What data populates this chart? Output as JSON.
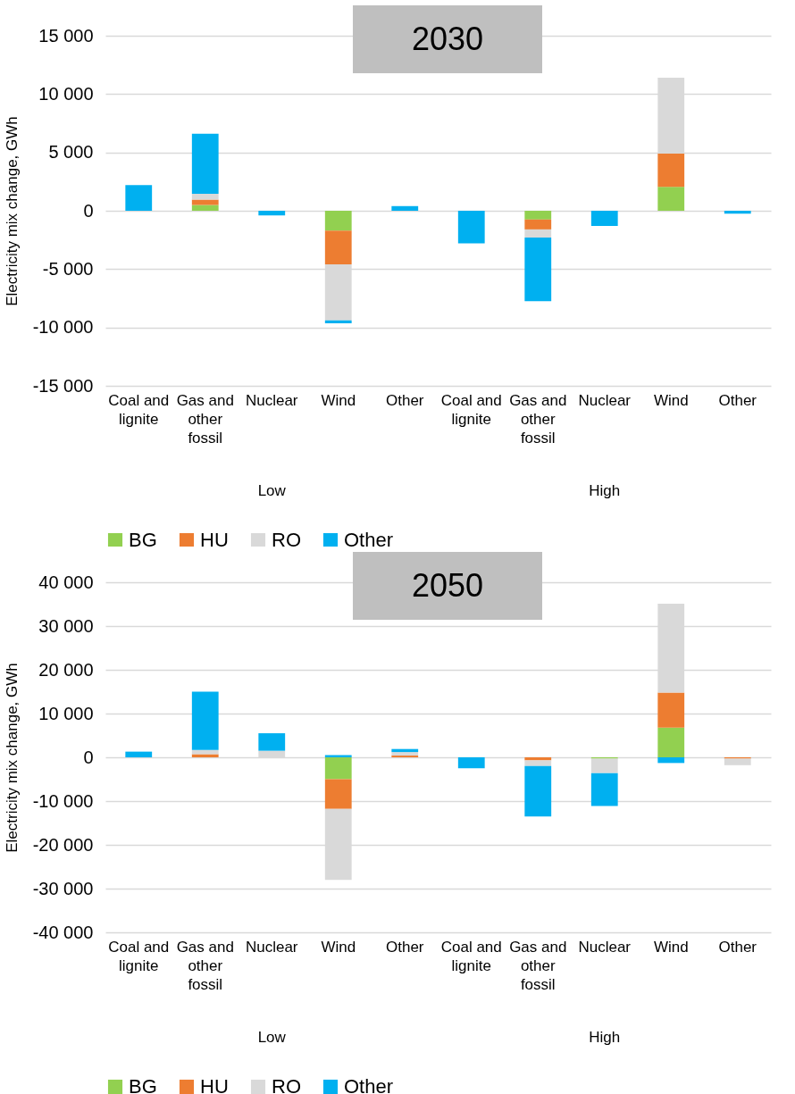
{
  "chart_data": [
    {
      "type": "bar",
      "title": "2030",
      "ylabel": "Electricity mix change, GWh",
      "stacked": true,
      "categories": [
        "Coal and lignite",
        "Gas and other fossil",
        "Nuclear",
        "Wind",
        "Other",
        "Coal and lignite",
        "Gas and other fossil",
        "Nuclear",
        "Wind",
        "Other"
      ],
      "annotations": [
        "Low",
        "High"
      ],
      "series": [
        {
          "name": "BG",
          "color": "#92d050",
          "values": [
            null,
            500,
            null,
            -1700,
            null,
            null,
            -750,
            null,
            2050,
            null
          ]
        },
        {
          "name": "HU",
          "color": "#ed7d31",
          "values": [
            null,
            450,
            null,
            -2900,
            null,
            null,
            -850,
            null,
            2850,
            null
          ]
        },
        {
          "name": "RO",
          "color": "#d9d9d9",
          "values": [
            null,
            500,
            null,
            -4800,
            null,
            null,
            -700,
            null,
            6500,
            null
          ]
        },
        {
          "name": "Other",
          "color": "#00b0f0",
          "values": [
            2200,
            5150,
            -400,
            -250,
            400,
            -2800,
            -5450,
            -1300,
            null,
            -250
          ]
        }
      ],
      "ylim": [
        -15000,
        15000
      ],
      "yticks": [
        {
          "value": -15000,
          "label": "-15 000"
        },
        {
          "value": -10000,
          "label": "-10 000"
        },
        {
          "value": -5000,
          "label": "-5 000"
        },
        0,
        {
          "value": 5000,
          "label": "5 000"
        },
        {
          "value": 10000,
          "label": "10 000"
        },
        {
          "value": 15000,
          "label": "15 000"
        }
      ],
      "grid": "y",
      "legend": "bottom"
    },
    {
      "type": "bar",
      "title": "2050",
      "ylabel": "Electricity mix change, GWh",
      "stacked": true,
      "categories": [
        "Coal and lignite",
        "Gas and other fossil",
        "Nuclear",
        "Wind",
        "Other",
        "Coal and lignite",
        "Gas and other fossil",
        "Nuclear",
        "Wind",
        "Other"
      ],
      "annotations": [
        "Low",
        "High"
      ],
      "series": [
        {
          "name": "BG",
          "color": "#92d050",
          "values": [
            null,
            null,
            null,
            -5000,
            null,
            null,
            null,
            -300,
            6800,
            null
          ]
        },
        {
          "name": "HU",
          "color": "#ed7d31",
          "values": [
            null,
            700,
            null,
            -6800,
            400,
            null,
            -700,
            null,
            8000,
            -300
          ]
        },
        {
          "name": "RO",
          "color": "#d9d9d9",
          "values": [
            null,
            1000,
            1500,
            -16200,
            800,
            null,
            -1300,
            -3300,
            20300,
            -1500
          ]
        },
        {
          "name": "Other",
          "color": "#00b0f0",
          "values": [
            1300,
            13300,
            4000,
            500,
            700,
            -2500,
            -11500,
            -7500,
            -1300,
            null
          ]
        }
      ],
      "ylim": [
        -40000,
        40000
      ],
      "yticks": [
        {
          "value": -40000,
          "label": "-40 000"
        },
        {
          "value": -30000,
          "label": "-30 000"
        },
        {
          "value": -20000,
          "label": "-20 000"
        },
        {
          "value": -10000,
          "label": "-10 000"
        },
        0,
        {
          "value": 10000,
          "label": "10 000"
        },
        {
          "value": 20000,
          "label": "20 000"
        },
        {
          "value": 30000,
          "label": "30 000"
        },
        {
          "value": 40000,
          "label": "40 000"
        }
      ],
      "grid": "y",
      "legend": "bottom"
    }
  ]
}
